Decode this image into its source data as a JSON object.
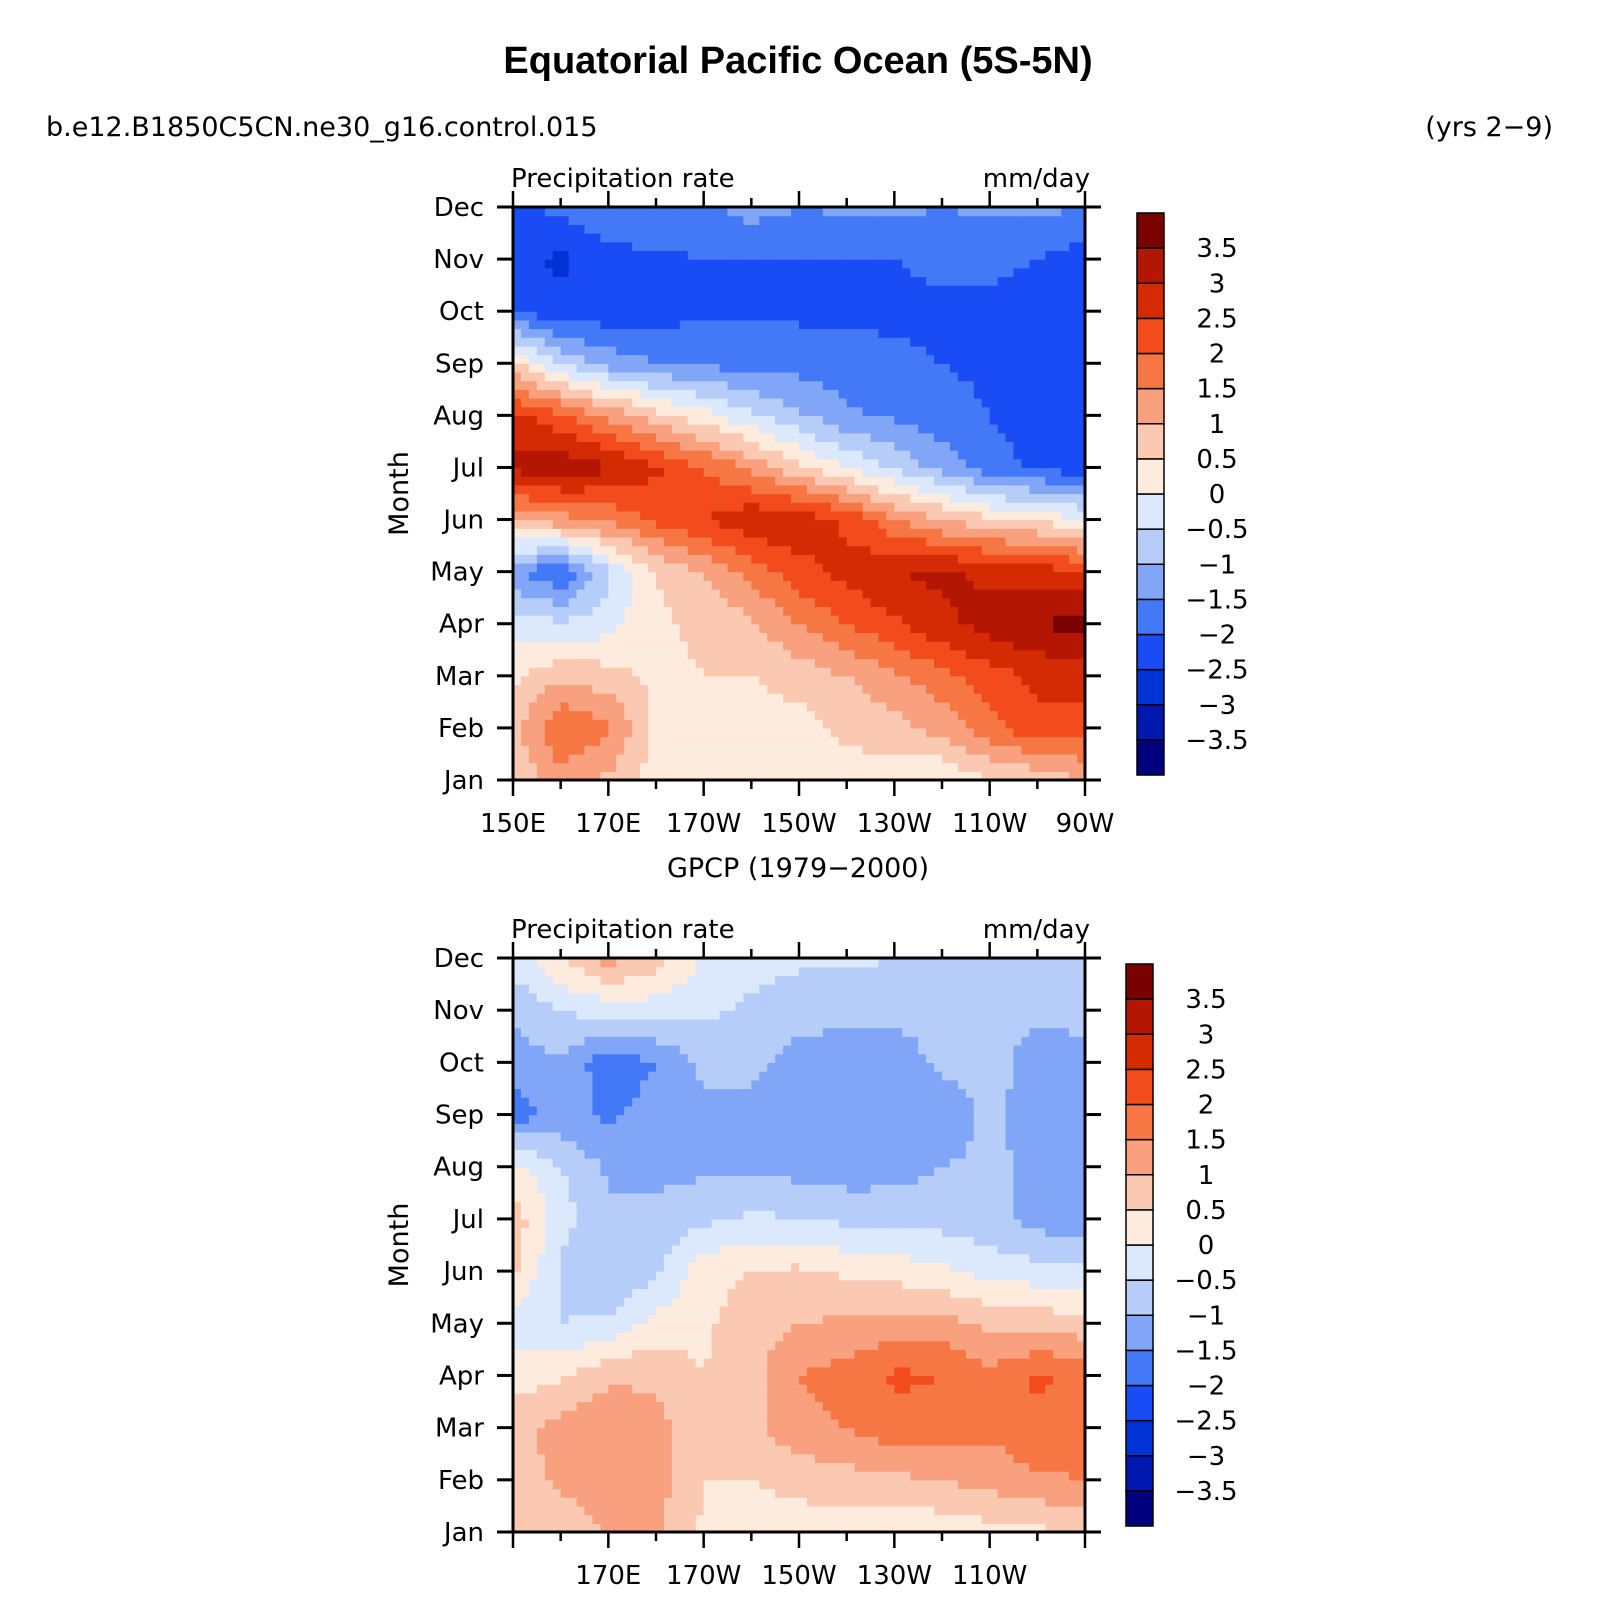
{
  "figure": {
    "title": "Equatorial Pacific Ocean (5S-5N)",
    "case_name": "b.e12.B1850C5CN.ne30_g16.control.015",
    "years": "(yrs 2-9)",
    "observation_label": "GPCP (1979-2000)"
  },
  "colorbar": {
    "levels": [
      "3.5",
      "3",
      "2.5",
      "2",
      "1.5",
      "1",
      "0.5",
      "0",
      "-0.5",
      "-1",
      "-1.5",
      "-2",
      "-2.5",
      "-3",
      "-3.5"
    ],
    "colors": [
      "#00007f",
      "#0018b0",
      "#0033d6",
      "#1a4cf5",
      "#4378f6",
      "#82a6f7",
      "#b7cdf9",
      "#dce8fb",
      "#fdebdd",
      "#fbc9b1",
      "#f9a07e",
      "#f67744",
      "#f24b1c",
      "#d52b05",
      "#b31603",
      "#7b0000"
    ]
  },
  "chart_data": [
    {
      "type": "heatmap",
      "panel": "model",
      "title_left": "Precipitation rate",
      "title_right": "mm/day",
      "ylabel": "Month",
      "x": [
        150,
        160,
        170,
        180,
        190,
        200,
        210,
        220,
        230,
        240,
        250,
        260,
        270
      ],
      "x_unit": "degrees east longitude",
      "xticklabels": [
        "150E",
        "170E",
        "170W",
        "150W",
        "130W",
        "110W",
        "90W"
      ],
      "y": [
        "Jan",
        "Feb",
        "Mar",
        "Apr",
        "May",
        "Jun",
        "Jul",
        "Aug",
        "Sep",
        "Oct",
        "Nov",
        "Dec"
      ],
      "z": [
        [
          0.6,
          1.3,
          0.9,
          0.3,
          0.3,
          0.2,
          0.2,
          0.3,
          0.2,
          0.0,
          0.5,
          0.6,
          1.0
        ],
        [
          0.8,
          2.0,
          1.6,
          0.3,
          0.3,
          0.3,
          0.3,
          0.6,
          0.8,
          1.2,
          1.8,
          2.4,
          2.3
        ],
        [
          0.4,
          0.9,
          0.7,
          0.4,
          0.5,
          0.5,
          0.7,
          1.0,
          1.4,
          1.8,
          2.3,
          2.6,
          2.7
        ],
        [
          -0.3,
          -0.4,
          -0.2,
          0.4,
          0.6,
          0.9,
          1.5,
          2.0,
          2.4,
          2.9,
          3.2,
          3.5,
          3.7
        ],
        [
          -1.4,
          -2.0,
          -0.6,
          0.5,
          1.0,
          1.7,
          2.3,
          2.7,
          3.0,
          3.1,
          2.9,
          2.8,
          2.5
        ],
        [
          1.0,
          1.3,
          1.6,
          2.1,
          2.5,
          2.9,
          2.9,
          2.4,
          1.6,
          1.0,
          0.6,
          0.4,
          0.0
        ],
        [
          3.1,
          3.4,
          3.1,
          2.6,
          2.0,
          1.4,
          0.6,
          0.0,
          -0.6,
          -1.2,
          -1.8,
          -2.1,
          -2.3
        ],
        [
          2.7,
          2.1,
          1.4,
          0.7,
          0.2,
          -0.4,
          -0.9,
          -1.4,
          -1.6,
          -1.8,
          -2.0,
          -2.2,
          -2.3
        ],
        [
          0.6,
          -0.5,
          -1.2,
          -1.5,
          -1.6,
          -1.7,
          -1.7,
          -1.8,
          -1.9,
          -2.0,
          -2.1,
          -2.2,
          -2.3
        ],
        [
          -2.0,
          -2.4,
          -2.3,
          -2.2,
          -2.1,
          -2.1,
          -2.1,
          -2.1,
          -2.1,
          -2.1,
          -2.1,
          -2.2,
          -2.3
        ],
        [
          -2.4,
          -2.6,
          -2.2,
          -2.1,
          -2.0,
          -2.0,
          -2.0,
          -2.0,
          -2.0,
          -1.9,
          -1.9,
          -2.0,
          -2.3
        ],
        [
          -2.1,
          -1.9,
          -1.6,
          -1.5,
          -1.6,
          -1.3,
          -1.5,
          -1.4,
          -1.4,
          -1.5,
          -1.4,
          -1.4,
          -1.5
        ]
      ],
      "clevels": [
        -3.5,
        -3,
        -2.5,
        -2,
        -1.5,
        -1,
        -0.5,
        0,
        0.5,
        1,
        1.5,
        2,
        2.5,
        3,
        3.5
      ]
    },
    {
      "type": "heatmap",
      "panel": "observed",
      "title_left": "Precipitation rate",
      "title_right": "mm/day",
      "ylabel": "Month",
      "x": [
        150,
        160,
        170,
        180,
        190,
        200,
        210,
        220,
        230,
        240,
        250,
        260,
        270
      ],
      "x_unit": "degrees east longitude",
      "xticklabels": [
        "170E",
        "170W",
        "150W",
        "130W",
        "110W"
      ],
      "y": [
        "Jan",
        "Feb",
        "Mar",
        "Apr",
        "May",
        "Jun",
        "Jul",
        "Aug",
        "Sep",
        "Oct",
        "Nov",
        "Dec"
      ],
      "z": [
        [
          0.6,
          0.7,
          1.0,
          1.1,
          0.4,
          0.2,
          0.2,
          0.2,
          0.0,
          0.2,
          0.3,
          0.4,
          0.5
        ],
        [
          0.8,
          1.1,
          1.3,
          1.2,
          0.5,
          0.5,
          0.7,
          0.8,
          0.9,
          1.0,
          1.2,
          1.4,
          1.5
        ],
        [
          0.8,
          1.2,
          1.4,
          1.2,
          0.5,
          0.9,
          1.3,
          1.5,
          1.8,
          1.8,
          1.6,
          1.9,
          1.8
        ],
        [
          0.3,
          0.4,
          0.9,
          0.9,
          0.5,
          0.8,
          1.5,
          1.7,
          2.1,
          2.0,
          1.6,
          2.1,
          1.8
        ],
        [
          -0.2,
          -0.5,
          -0.4,
          0.2,
          0.4,
          0.8,
          1.0,
          1.1,
          1.2,
          1.2,
          0.9,
          0.8,
          0.7
        ],
        [
          0.6,
          -0.6,
          -1.0,
          -0.6,
          0.3,
          0.5,
          0.6,
          0.4,
          0.3,
          0.1,
          -0.2,
          -0.3,
          -0.4
        ],
        [
          0.8,
          -0.3,
          -0.9,
          -0.8,
          -0.6,
          -0.4,
          -0.5,
          -0.6,
          -0.7,
          -0.7,
          -0.8,
          -1.2,
          -1.4
        ],
        [
          0.2,
          -0.5,
          -1.1,
          -1.2,
          -1.1,
          -1.1,
          -1.2,
          -1.3,
          -1.2,
          -1.0,
          -0.9,
          -1.1,
          -1.2
        ],
        [
          -1.8,
          -1.3,
          -1.6,
          -1.3,
          -1.1,
          -1.1,
          -1.5,
          -1.5,
          -1.4,
          -1.3,
          -0.9,
          -1.2,
          -1.3
        ],
        [
          -1.2,
          -1.1,
          -1.8,
          -1.5,
          -0.9,
          -0.9,
          -1.2,
          -1.2,
          -1.2,
          -0.9,
          -0.8,
          -1.2,
          -1.1
        ],
        [
          -0.9,
          -0.5,
          -0.3,
          -0.3,
          -0.4,
          -0.6,
          -0.8,
          -0.9,
          -0.9,
          -0.9,
          -0.9,
          -0.9,
          -0.9
        ],
        [
          -0.3,
          0.5,
          1.2,
          0.8,
          -0.1,
          -0.3,
          -0.4,
          -0.4,
          -0.5,
          -0.6,
          -0.7,
          -0.7,
          -0.7
        ]
      ],
      "clevels": [
        -3.5,
        -3,
        -2.5,
        -2,
        -1.5,
        -1,
        -0.5,
        0,
        0.5,
        1,
        1.5,
        2,
        2.5,
        3,
        3.5
      ]
    }
  ]
}
